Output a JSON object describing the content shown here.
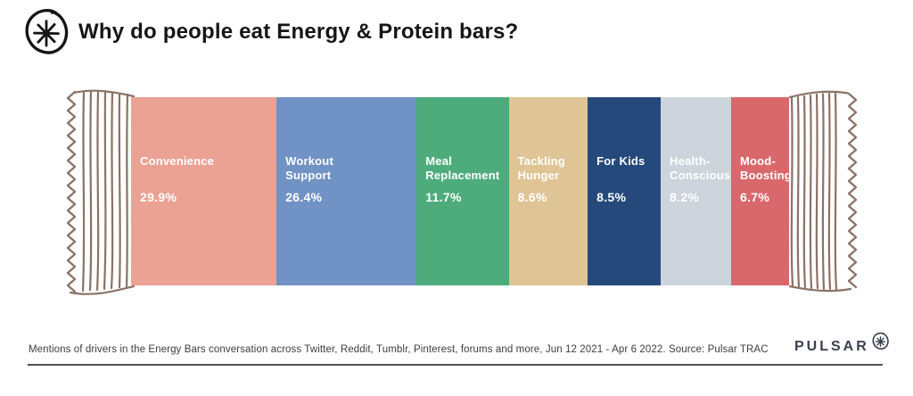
{
  "page": {
    "title": "Why do people eat Energy & Protein bars?",
    "footer": "Mentions of drivers in the Energy Bars conversation across Twitter, Reddit, Tumblr, Pinterest, forums and more, Jun 12 2021 - Apr 6 2022. Source: Pulsar TRAC",
    "brand": "PULSAR"
  },
  "icons": {
    "header_logo": "pulsar-asterisk-in-circle",
    "brand_logo": "pulsar-asterisk-in-circle",
    "wrapper_left": "hand-drawn-bar-wrapper-crinkled-end",
    "wrapper_right": "hand-drawn-bar-wrapper-crinkled-end"
  },
  "colors": {
    "wrapper_outline": "#8A7265",
    "title_text": "#161616",
    "footer_text": "#3d3d3d",
    "footer_rule": "#4f4f4f",
    "brand_text": "#383f4e",
    "segment_label_text": "#ffffff"
  },
  "chart_data": {
    "type": "bar",
    "variant": "horizontal-stacked-infographic-energy-bar",
    "title": "Why do people eat Energy & Protein bars?",
    "unit": "%",
    "legend_position": "in-segment",
    "grid": false,
    "categories": [
      "Convenience",
      "Workout Support",
      "Meal Replacement",
      "Tackling Hunger",
      "For Kids",
      "Health-Conscious",
      "Mood-Boosting"
    ],
    "values": [
      29.9,
      26.4,
      11.7,
      8.6,
      8.5,
      8.2,
      6.7
    ],
    "segments": [
      {
        "name": "Convenience",
        "label_display": "Convenience",
        "value": 29.9,
        "value_display": "29.9%",
        "color": "#EBA193",
        "width_pct": 22.1
      },
      {
        "name": "Workout Support",
        "label_display": "Workout\nSupport",
        "value": 26.4,
        "value_display": "26.4%",
        "color": "#7092C5",
        "width_pct": 21.3
      },
      {
        "name": "Meal Replacement",
        "label_display": "Meal\nReplacement",
        "value": 11.7,
        "value_display": "11.7%",
        "color": "#4EAB7C",
        "width_pct": 14.0
      },
      {
        "name": "Tackling Hunger",
        "label_display": "Tackling\nHunger",
        "value": 8.6,
        "value_display": "8.6%",
        "color": "#DFC495",
        "width_pct": 12.0
      },
      {
        "name": "For Kids",
        "label_display": "For Kids",
        "value": 8.5,
        "value_display": "8.5%",
        "color": "#25497B",
        "width_pct": 11.1
      },
      {
        "name": "Health-Conscious",
        "label_display": "Health-\nConscious",
        "value": 8.2,
        "value_display": "8.2%",
        "color": "#CDD4DB",
        "width_pct": 10.7
      },
      {
        "name": "Mood-Boosting",
        "label_display": "Mood-\nBoosting",
        "value": 6.7,
        "value_display": "6.7%",
        "color": "#D9686C",
        "width_pct": 8.8
      }
    ]
  }
}
